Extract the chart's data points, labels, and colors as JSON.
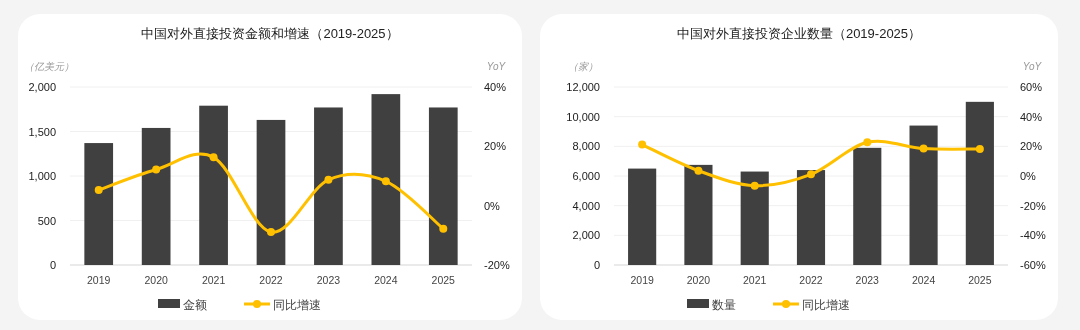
{
  "chart_data": [
    {
      "type": "bar",
      "title": "中国对外直接投资金额和增速（2019-2025）",
      "ylabel": "（亿美元）",
      "y2label": "YoY",
      "categories": [
        "2019",
        "2020",
        "2021",
        "2022",
        "2023",
        "2024",
        "2025"
      ],
      "series": [
        {
          "name": "金额",
          "type": "bar",
          "color": "#404040",
          "values": [
            1370,
            1540,
            1790,
            1630,
            1770,
            1920,
            1770
          ]
        },
        {
          "name": "同比增速",
          "type": "line",
          "axis": "y2",
          "color": "#ffc000",
          "values": [
            5.3,
            12.2,
            16.3,
            -8.9,
            8.7,
            8.2,
            -7.8
          ]
        }
      ],
      "ylim": [
        0,
        2000
      ],
      "yticks": [
        0,
        {
          "value": 500,
          "label": "500"
        },
        {
          "value": 1000,
          "label": "1,000"
        },
        {
          "value": 1500,
          "label": "1,500"
        },
        {
          "value": 2000,
          "label": "2,000"
        }
      ],
      "y2lim": [
        -20,
        40
      ],
      "y2ticks": [
        {
          "value": -20,
          "label": "-20%"
        },
        {
          "value": 0,
          "label": "0%"
        },
        {
          "value": 20,
          "label": "20%"
        },
        {
          "value": 40,
          "label": "40%"
        }
      ],
      "grid": "y",
      "legend": "bottom",
      "marker": "circle"
    },
    {
      "type": "bar",
      "title": "中国对外直接投资企业数量（2019-2025）",
      "ylabel": "（家）",
      "y2label": "YoY",
      "categories": [
        "2019",
        "2020",
        "2021",
        "2022",
        "2023",
        "2024",
        "2025"
      ],
      "series": [
        {
          "name": "数量",
          "type": "bar",
          "color": "#404040",
          "values": [
            6500,
            6750,
            6300,
            6400,
            7900,
            9400,
            11000
          ]
        },
        {
          "name": "同比增速",
          "type": "line",
          "axis": "y2",
          "color": "#ffc000",
          "values": [
            21.2,
            3.6,
            -6.5,
            1.1,
            22.7,
            18.5,
            18.2
          ]
        }
      ],
      "ylim": [
        0,
        12000
      ],
      "yticks": [
        0,
        {
          "value": 2000,
          "label": "2,000"
        },
        {
          "value": 4000,
          "label": "4,000"
        },
        {
          "value": 6000,
          "label": "6,000"
        },
        {
          "value": 8000,
          "label": "8,000"
        },
        {
          "value": 10000,
          "label": "10,000"
        },
        {
          "value": 12000,
          "label": "12,000"
        }
      ],
      "y2lim": [
        -60,
        60
      ],
      "y2ticks": [
        {
          "value": -60,
          "label": "-60%"
        },
        {
          "value": -40,
          "label": "-40%"
        },
        {
          "value": -20,
          "label": "-20%"
        },
        {
          "value": 0,
          "label": "0%"
        },
        {
          "value": 20,
          "label": "20%"
        },
        {
          "value": 40,
          "label": "40%"
        },
        {
          "value": 60,
          "label": "60%"
        }
      ],
      "grid": "y",
      "legend": "bottom",
      "marker": "circle"
    }
  ]
}
